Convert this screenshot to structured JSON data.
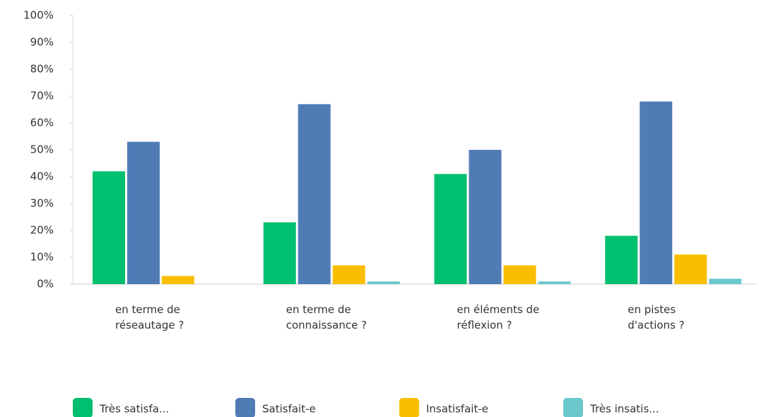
{
  "chart_data": {
    "type": "bar",
    "categories": [
      "en terme de réseautage ?",
      "en terme de connaissance ?",
      "en éléments de réflexion ?",
      "en pistes d'actions ?"
    ],
    "series": [
      {
        "name": "Très satisfa...",
        "color": "#00bf6f",
        "values": [
          42,
          23,
          41,
          18
        ]
      },
      {
        "name": "Satisfait-e",
        "color": "#507cb6",
        "values": [
          53,
          67,
          50,
          68
        ]
      },
      {
        "name": "Insatisfait-e",
        "color": "#f9be00",
        "values": [
          3,
          7,
          7,
          11
        ]
      },
      {
        "name": "Très insatis...",
        "color": "#6bc8cd",
        "values": [
          0,
          1,
          1,
          2
        ]
      }
    ],
    "ylim": [
      0,
      100
    ],
    "yticks": [
      {
        "value": 0,
        "label": "0%"
      },
      {
        "value": 10,
        "label": "10%"
      },
      {
        "value": 20,
        "label": "20%"
      },
      {
        "value": 30,
        "label": "30%"
      },
      {
        "value": 40,
        "label": "40%"
      },
      {
        "value": 50,
        "label": "50%"
      },
      {
        "value": 60,
        "label": "60%"
      },
      {
        "value": 70,
        "label": "70%"
      },
      {
        "value": 80,
        "label": "80%"
      },
      {
        "value": 90,
        "label": "90%"
      },
      {
        "value": 100,
        "label": "100%"
      }
    ],
    "grid": false,
    "legend": "bottom"
  }
}
